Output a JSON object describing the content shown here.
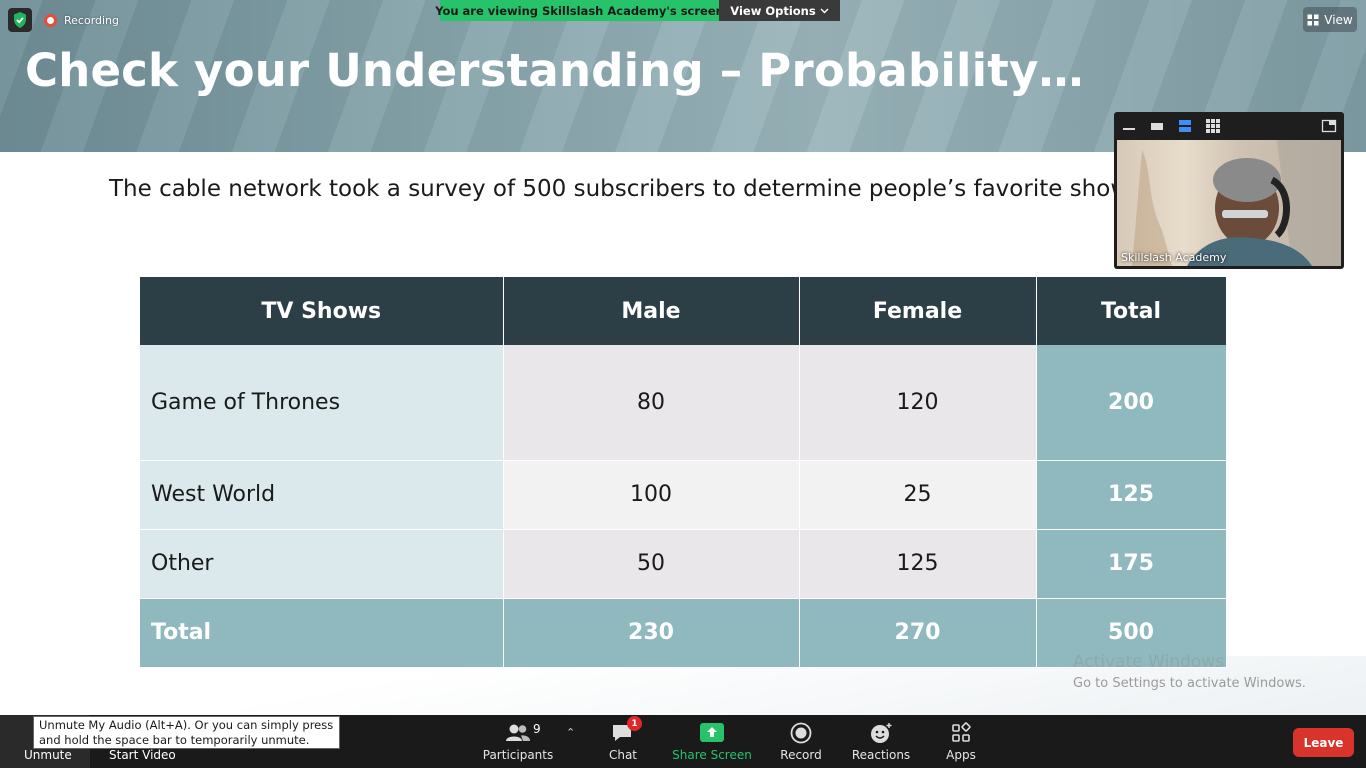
{
  "recording": {
    "label": "Recording"
  },
  "banner": {
    "viewing_text": "You are viewing Skillslash Academy's screen",
    "view_options_label": "View Options"
  },
  "view_button": {
    "label": "View"
  },
  "slide": {
    "title": "Check your Understanding – Probability…",
    "question": "The cable network took a survey of 500 subscribers to determine people’s favorite shows"
  },
  "table": {
    "headers": [
      "TV Shows",
      "Male",
      "Female",
      "Total"
    ],
    "rows": [
      {
        "show": "Game of Thrones",
        "male": "80",
        "female": "120",
        "total": "200"
      },
      {
        "show": "West World",
        "male": "100",
        "female": "25",
        "total": "125"
      },
      {
        "show": "Other",
        "male": "50",
        "female": "125",
        "total": "175"
      }
    ],
    "total_row": {
      "label": "Total",
      "male": "230",
      "female": "270",
      "total": "500"
    }
  },
  "video": {
    "participant_name": "Skillslash Academy"
  },
  "watermark": {
    "title": "Activate Windows",
    "subtitle": "Go to Settings to activate Windows."
  },
  "toolbar": {
    "unmute_label": "Unmute",
    "start_video_label": "Start Video",
    "tooltip": "Unmute My Audio (Alt+A). Or you can simply press and hold the space bar to temporarily unmute.",
    "participants_label": "Participants",
    "participants_count": "9",
    "chat_label": "Chat",
    "chat_badge": "1",
    "share_label": "Share Screen",
    "record_label": "Record",
    "reactions_label": "Reactions",
    "apps_label": "Apps",
    "leave_label": "Leave"
  },
  "colors": {
    "header_dark": "#2c3e46",
    "total_teal": "#8fb9be",
    "share_green": "#26c36b",
    "leave_red": "#d9342b"
  }
}
